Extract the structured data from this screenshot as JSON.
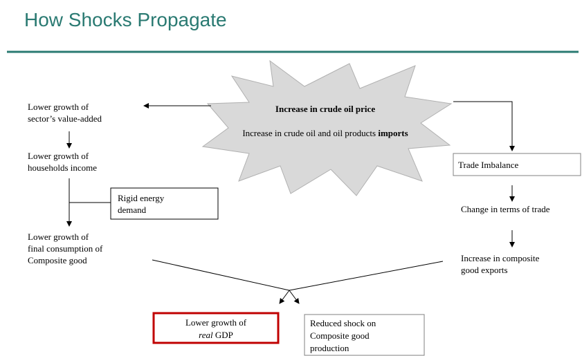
{
  "title": "How Shocks Propagate",
  "shock": {
    "heading": "Increase in crude oil price",
    "text": "Increase in crude oil and oil products",
    "emphasis": "imports"
  },
  "left": [
    [
      "Lower growth of",
      "sector’s value-added"
    ],
    [
      "Lower growth of",
      "households income"
    ],
    [
      "Lower growth of",
      "final consumption of",
      "Composite good"
    ]
  ],
  "rigid": [
    "Rigid energy",
    "demand"
  ],
  "right": [
    [
      "Trade Imbalance"
    ],
    [
      "Change in terms of trade"
    ],
    [
      "Increase in composite",
      "good exports"
    ]
  ],
  "gdp": {
    "line": "Lower growth of",
    "emphasis": "real",
    "text": "GDP"
  },
  "reduced": [
    "Reduced shock on",
    "Composite good",
    "production"
  ]
}
